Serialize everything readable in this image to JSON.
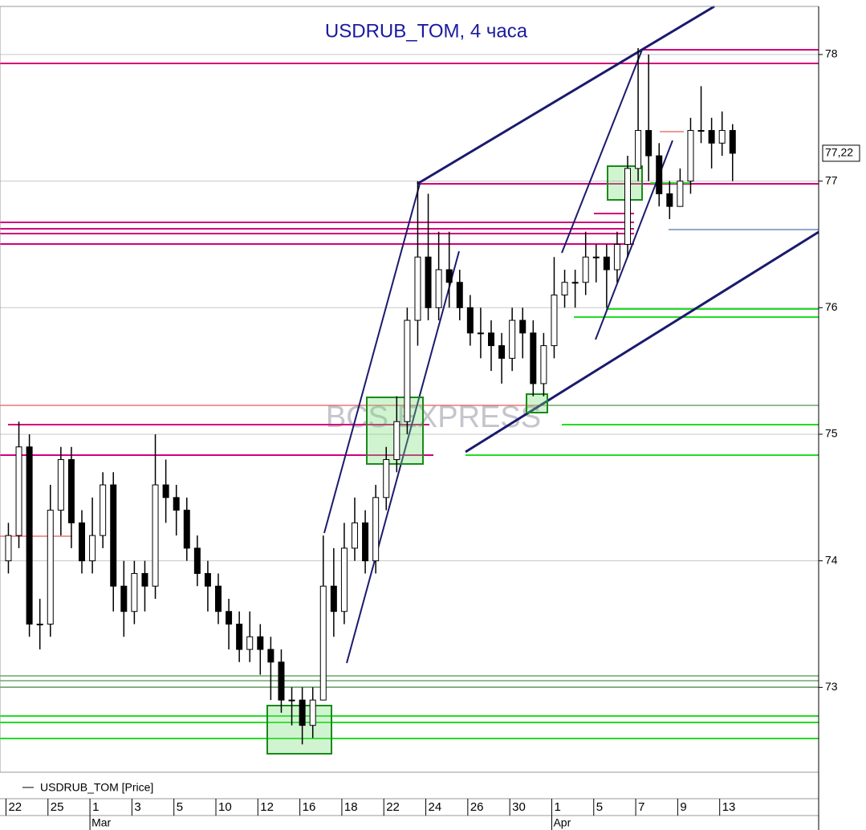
{
  "chart_data": {
    "type": "candlestick",
    "title": "USDRUB_TOM, 4 часа",
    "watermark": "BCS EXPRESS",
    "xlim": [
      -0.2,
      19.3
    ],
    "ylim": [
      72.33,
      78.38
    ],
    "yticks": [
      73,
      74,
      75,
      76,
      77,
      78
    ],
    "xticks": [
      {
        "value": 0,
        "label": "22"
      },
      {
        "value": 1,
        "label": "25"
      },
      {
        "value": 2,
        "label": "1"
      },
      {
        "value": 3,
        "label": "3"
      },
      {
        "value": 4,
        "label": "5"
      },
      {
        "value": 5,
        "label": "10"
      },
      {
        "value": 6,
        "label": "12"
      },
      {
        "value": 7,
        "label": "16"
      },
      {
        "value": 8,
        "label": "18"
      },
      {
        "value": 9,
        "label": "22"
      },
      {
        "value": 10,
        "label": "24"
      },
      {
        "value": 11,
        "label": "26"
      },
      {
        "value": 12,
        "label": "30"
      },
      {
        "value": 13,
        "label": "1"
      },
      {
        "value": 14,
        "label": "5"
      },
      {
        "value": 15,
        "label": "7"
      },
      {
        "value": 16,
        "label": "9"
      },
      {
        "value": 17,
        "label": "13"
      }
    ],
    "months": [
      {
        "value": 2,
        "label": "Mar"
      },
      {
        "value": 13,
        "label": "Apr"
      }
    ],
    "last_price": {
      "value": 77.22,
      "label": "77,22"
    },
    "grid": true,
    "series": [
      {
        "name": "USDRUB_TOM [Price]",
        "color": "#000000",
        "x": [
          0,
          0.25,
          0.5,
          0.75,
          1,
          1.25,
          1.5,
          1.75,
          2,
          2.25,
          2.5,
          2.75,
          3,
          3.25,
          3.5,
          3.75,
          4,
          4.25,
          4.5,
          4.75,
          5,
          5.25,
          5.5,
          5.75,
          6,
          6.25,
          6.5,
          6.75,
          7,
          7.25,
          7.5,
          7.75,
          8,
          8.25,
          8.5,
          8.75,
          9,
          9.25,
          9.5,
          9.75,
          10,
          10.25,
          10.5,
          10.75,
          11,
          11.25,
          11.5,
          11.75,
          12,
          12.25,
          12.5,
          12.75,
          13,
          13.25,
          13.5,
          13.75,
          14,
          14.25,
          14.5,
          14.75,
          15,
          15.25,
          15.5,
          15.75,
          16,
          16.25,
          16.5,
          16.75,
          17,
          17.25
        ],
        "open": [
          74.0,
          74.2,
          74.9,
          73.5,
          73.5,
          74.4,
          74.8,
          74.3,
          74.0,
          74.2,
          74.6,
          73.8,
          73.6,
          73.9,
          73.8,
          74.6,
          74.5,
          74.4,
          74.1,
          73.9,
          73.8,
          73.6,
          73.5,
          73.3,
          73.4,
          73.3,
          73.2,
          72.9,
          72.9,
          72.7,
          72.9,
          73.8,
          73.6,
          74.1,
          74.3,
          74.0,
          74.5,
          74.8,
          75.1,
          75.9,
          76.4,
          76.0,
          76.3,
          76.2,
          76.0,
          75.8,
          75.8,
          75.7,
          75.6,
          75.9,
          75.8,
          75.4,
          75.7,
          76.1,
          76.2,
          76.2,
          76.4,
          76.4,
          76.3,
          76.5,
          77.1,
          77.4,
          77.2,
          76.9,
          76.8,
          77.0,
          77.4,
          77.4,
          77.3,
          77.4
        ],
        "high": [
          74.3,
          75.1,
          75.0,
          73.7,
          74.6,
          74.9,
          74.9,
          74.4,
          74.5,
          74.7,
          74.7,
          74.0,
          74.0,
          74.0,
          75.0,
          74.8,
          74.6,
          74.5,
          74.2,
          74.0,
          73.9,
          73.7,
          73.6,
          73.6,
          73.5,
          73.4,
          73.3,
          73.0,
          73.0,
          73.0,
          74.2,
          74.1,
          74.3,
          74.5,
          74.4,
          74.6,
          74.9,
          75.3,
          76.0,
          77.0,
          76.9,
          76.6,
          76.6,
          76.3,
          76.1,
          76.0,
          75.9,
          75.8,
          76.0,
          76.0,
          75.9,
          75.8,
          76.4,
          76.3,
          76.3,
          76.6,
          76.5,
          76.5,
          76.6,
          77.2,
          78.05,
          78.0,
          77.3,
          77.0,
          77.1,
          77.5,
          77.75,
          77.5,
          77.55,
          77.45
        ],
        "low": [
          73.9,
          74.1,
          73.4,
          73.3,
          73.4,
          74.2,
          74.1,
          73.9,
          73.9,
          74.1,
          73.6,
          73.4,
          73.5,
          73.6,
          73.7,
          74.3,
          74.2,
          74.0,
          73.8,
          73.6,
          73.5,
          73.3,
          73.2,
          73.2,
          73.1,
          72.9,
          72.8,
          72.7,
          72.55,
          72.6,
          72.9,
          73.4,
          73.5,
          74.0,
          73.9,
          73.9,
          74.4,
          74.7,
          75.0,
          75.7,
          75.9,
          75.9,
          76.0,
          75.9,
          75.7,
          75.6,
          75.5,
          75.4,
          75.5,
          75.6,
          75.3,
          75.3,
          75.6,
          76.0,
          76.0,
          76.1,
          76.2,
          76.0,
          76.2,
          76.4,
          77.0,
          77.0,
          76.8,
          76.7,
          76.8,
          76.9,
          77.3,
          77.1,
          77.2,
          77.0
        ],
        "close": [
          74.2,
          74.9,
          73.5,
          73.5,
          74.4,
          74.8,
          74.3,
          74.0,
          74.2,
          74.6,
          73.8,
          73.6,
          73.9,
          73.8,
          74.6,
          74.5,
          74.4,
          74.1,
          73.9,
          73.8,
          73.6,
          73.5,
          73.3,
          73.4,
          73.3,
          73.2,
          72.9,
          72.9,
          72.7,
          72.9,
          73.8,
          73.6,
          74.1,
          74.3,
          74.0,
          74.5,
          74.8,
          75.1,
          75.9,
          76.4,
          76.0,
          76.3,
          76.2,
          76.0,
          75.8,
          75.8,
          75.7,
          75.6,
          75.9,
          75.8,
          75.4,
          75.7,
          76.1,
          76.2,
          76.2,
          76.4,
          76.4,
          76.3,
          76.5,
          77.1,
          77.4,
          77.2,
          76.9,
          76.8,
          77.0,
          77.4,
          77.4,
          77.3,
          77.4,
          77.22
        ]
      }
    ]
  }
}
